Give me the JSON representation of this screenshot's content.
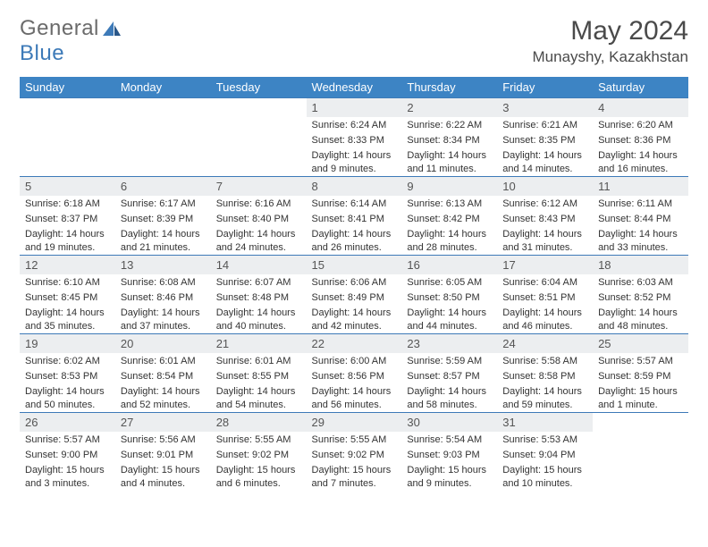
{
  "brand": {
    "word1": "General",
    "word2": "Blue"
  },
  "title": "May 2024",
  "location": "Munayshy, Kazakhstan",
  "colors": {
    "header_bg": "#3d84c4",
    "header_text": "#ffffff",
    "row_border": "#3d7ab8",
    "daynum_bg": "#eceef0",
    "text": "#333333",
    "brand_gray": "#6b6b6b",
    "brand_blue": "#3d7ab8"
  },
  "weekdays": [
    "Sunday",
    "Monday",
    "Tuesday",
    "Wednesday",
    "Thursday",
    "Friday",
    "Saturday"
  ],
  "weeks": [
    [
      null,
      null,
      null,
      {
        "n": "1",
        "sr": "Sunrise: 6:24 AM",
        "ss": "Sunset: 8:33 PM",
        "dl": "Daylight: 14 hours and 9 minutes."
      },
      {
        "n": "2",
        "sr": "Sunrise: 6:22 AM",
        "ss": "Sunset: 8:34 PM",
        "dl": "Daylight: 14 hours and 11 minutes."
      },
      {
        "n": "3",
        "sr": "Sunrise: 6:21 AM",
        "ss": "Sunset: 8:35 PM",
        "dl": "Daylight: 14 hours and 14 minutes."
      },
      {
        "n": "4",
        "sr": "Sunrise: 6:20 AM",
        "ss": "Sunset: 8:36 PM",
        "dl": "Daylight: 14 hours and 16 minutes."
      }
    ],
    [
      {
        "n": "5",
        "sr": "Sunrise: 6:18 AM",
        "ss": "Sunset: 8:37 PM",
        "dl": "Daylight: 14 hours and 19 minutes."
      },
      {
        "n": "6",
        "sr": "Sunrise: 6:17 AM",
        "ss": "Sunset: 8:39 PM",
        "dl": "Daylight: 14 hours and 21 minutes."
      },
      {
        "n": "7",
        "sr": "Sunrise: 6:16 AM",
        "ss": "Sunset: 8:40 PM",
        "dl": "Daylight: 14 hours and 24 minutes."
      },
      {
        "n": "8",
        "sr": "Sunrise: 6:14 AM",
        "ss": "Sunset: 8:41 PM",
        "dl": "Daylight: 14 hours and 26 minutes."
      },
      {
        "n": "9",
        "sr": "Sunrise: 6:13 AM",
        "ss": "Sunset: 8:42 PM",
        "dl": "Daylight: 14 hours and 28 minutes."
      },
      {
        "n": "10",
        "sr": "Sunrise: 6:12 AM",
        "ss": "Sunset: 8:43 PM",
        "dl": "Daylight: 14 hours and 31 minutes."
      },
      {
        "n": "11",
        "sr": "Sunrise: 6:11 AM",
        "ss": "Sunset: 8:44 PM",
        "dl": "Daylight: 14 hours and 33 minutes."
      }
    ],
    [
      {
        "n": "12",
        "sr": "Sunrise: 6:10 AM",
        "ss": "Sunset: 8:45 PM",
        "dl": "Daylight: 14 hours and 35 minutes."
      },
      {
        "n": "13",
        "sr": "Sunrise: 6:08 AM",
        "ss": "Sunset: 8:46 PM",
        "dl": "Daylight: 14 hours and 37 minutes."
      },
      {
        "n": "14",
        "sr": "Sunrise: 6:07 AM",
        "ss": "Sunset: 8:48 PM",
        "dl": "Daylight: 14 hours and 40 minutes."
      },
      {
        "n": "15",
        "sr": "Sunrise: 6:06 AM",
        "ss": "Sunset: 8:49 PM",
        "dl": "Daylight: 14 hours and 42 minutes."
      },
      {
        "n": "16",
        "sr": "Sunrise: 6:05 AM",
        "ss": "Sunset: 8:50 PM",
        "dl": "Daylight: 14 hours and 44 minutes."
      },
      {
        "n": "17",
        "sr": "Sunrise: 6:04 AM",
        "ss": "Sunset: 8:51 PM",
        "dl": "Daylight: 14 hours and 46 minutes."
      },
      {
        "n": "18",
        "sr": "Sunrise: 6:03 AM",
        "ss": "Sunset: 8:52 PM",
        "dl": "Daylight: 14 hours and 48 minutes."
      }
    ],
    [
      {
        "n": "19",
        "sr": "Sunrise: 6:02 AM",
        "ss": "Sunset: 8:53 PM",
        "dl": "Daylight: 14 hours and 50 minutes."
      },
      {
        "n": "20",
        "sr": "Sunrise: 6:01 AM",
        "ss": "Sunset: 8:54 PM",
        "dl": "Daylight: 14 hours and 52 minutes."
      },
      {
        "n": "21",
        "sr": "Sunrise: 6:01 AM",
        "ss": "Sunset: 8:55 PM",
        "dl": "Daylight: 14 hours and 54 minutes."
      },
      {
        "n": "22",
        "sr": "Sunrise: 6:00 AM",
        "ss": "Sunset: 8:56 PM",
        "dl": "Daylight: 14 hours and 56 minutes."
      },
      {
        "n": "23",
        "sr": "Sunrise: 5:59 AM",
        "ss": "Sunset: 8:57 PM",
        "dl": "Daylight: 14 hours and 58 minutes."
      },
      {
        "n": "24",
        "sr": "Sunrise: 5:58 AM",
        "ss": "Sunset: 8:58 PM",
        "dl": "Daylight: 14 hours and 59 minutes."
      },
      {
        "n": "25",
        "sr": "Sunrise: 5:57 AM",
        "ss": "Sunset: 8:59 PM",
        "dl": "Daylight: 15 hours and 1 minute."
      }
    ],
    [
      {
        "n": "26",
        "sr": "Sunrise: 5:57 AM",
        "ss": "Sunset: 9:00 PM",
        "dl": "Daylight: 15 hours and 3 minutes."
      },
      {
        "n": "27",
        "sr": "Sunrise: 5:56 AM",
        "ss": "Sunset: 9:01 PM",
        "dl": "Daylight: 15 hours and 4 minutes."
      },
      {
        "n": "28",
        "sr": "Sunrise: 5:55 AM",
        "ss": "Sunset: 9:02 PM",
        "dl": "Daylight: 15 hours and 6 minutes."
      },
      {
        "n": "29",
        "sr": "Sunrise: 5:55 AM",
        "ss": "Sunset: 9:02 PM",
        "dl": "Daylight: 15 hours and 7 minutes."
      },
      {
        "n": "30",
        "sr": "Sunrise: 5:54 AM",
        "ss": "Sunset: 9:03 PM",
        "dl": "Daylight: 15 hours and 9 minutes."
      },
      {
        "n": "31",
        "sr": "Sunrise: 5:53 AM",
        "ss": "Sunset: 9:04 PM",
        "dl": "Daylight: 15 hours and 10 minutes."
      },
      null
    ]
  ]
}
